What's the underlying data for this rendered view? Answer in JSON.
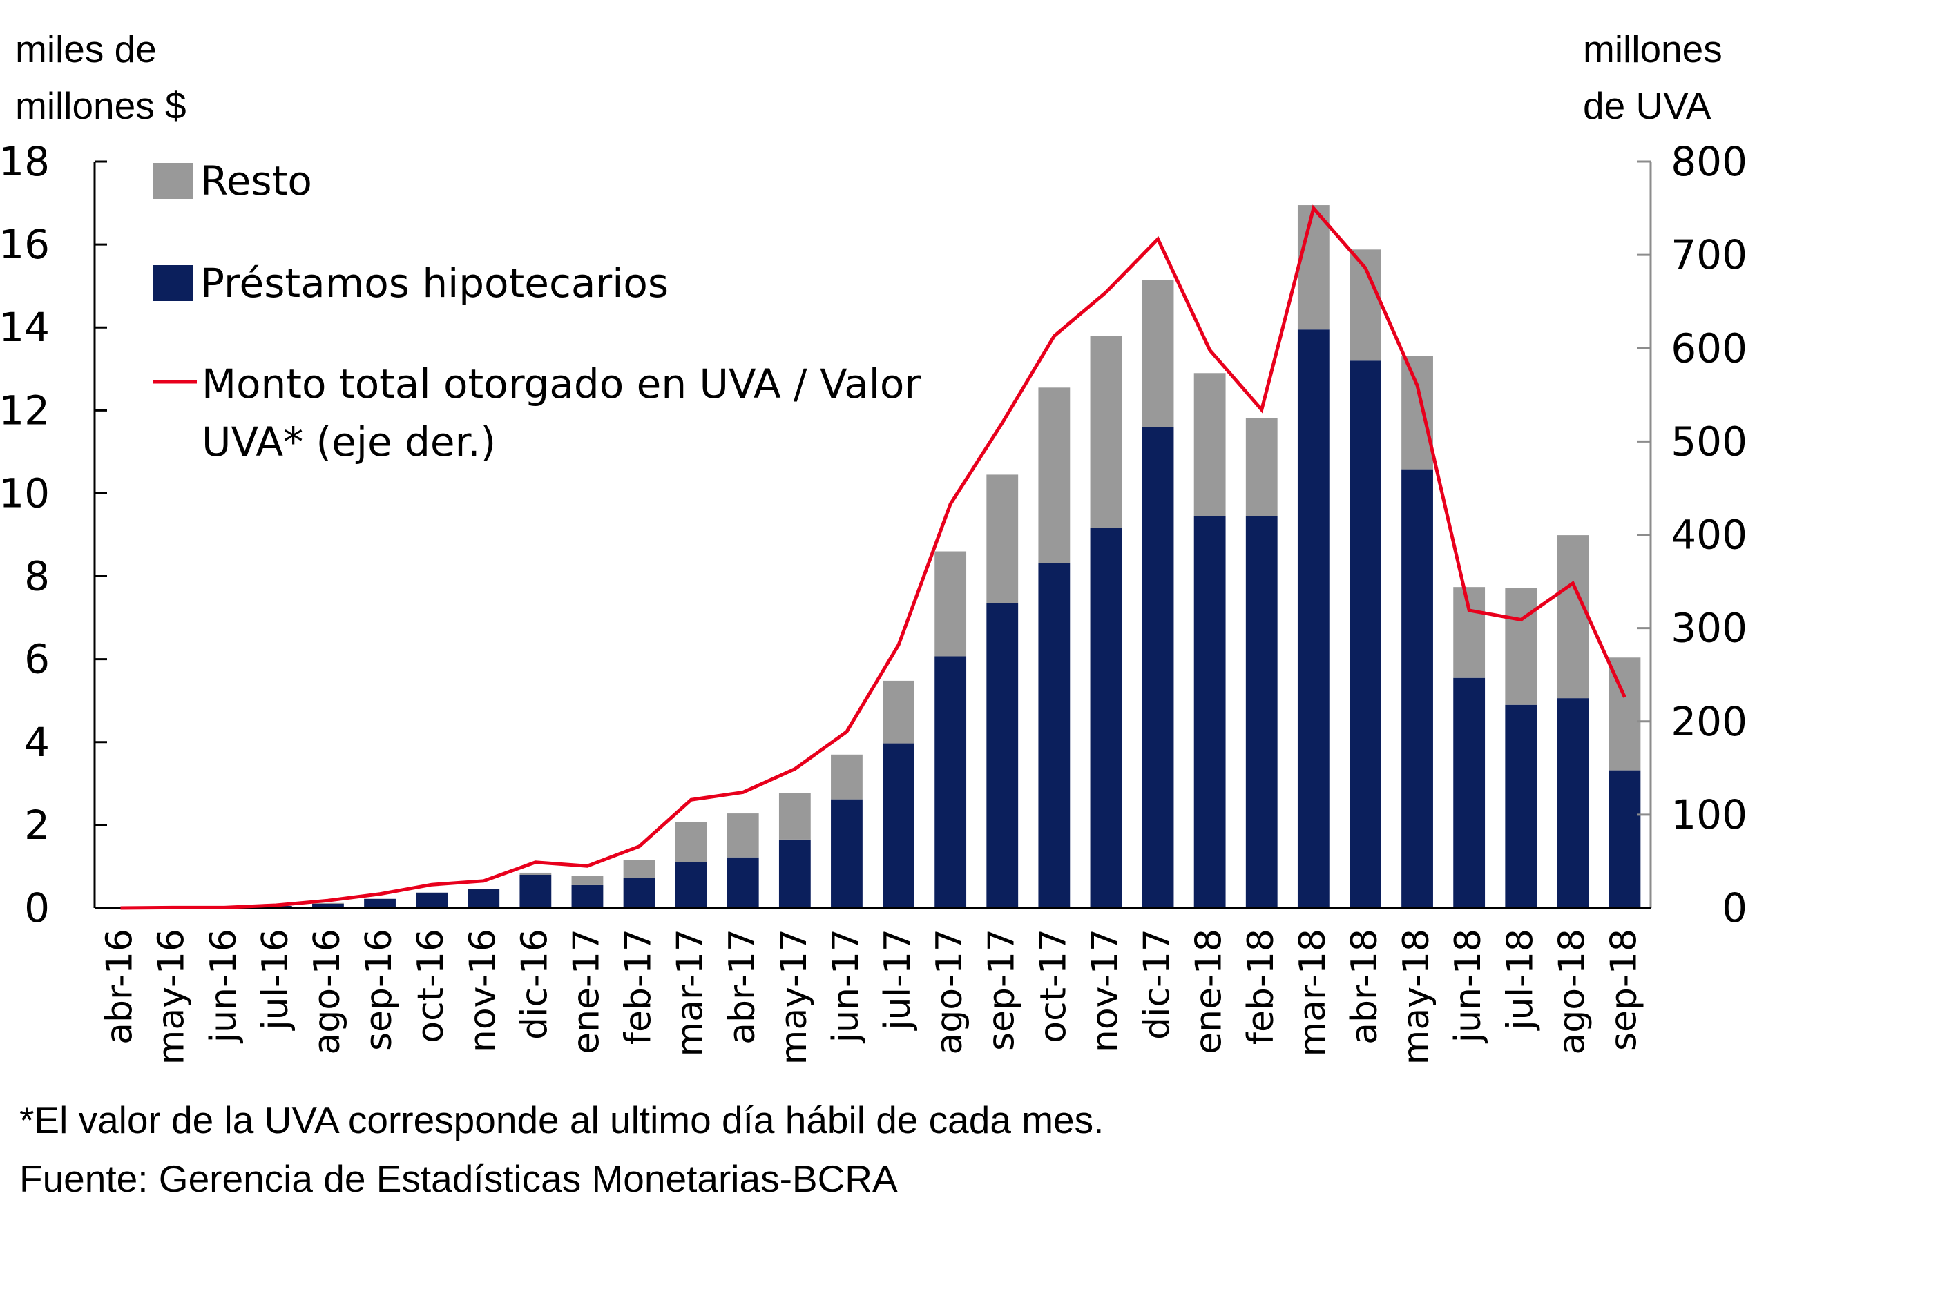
{
  "left_axis_title": [
    "miles de",
    "millones $"
  ],
  "right_axis_title": [
    "millones",
    "de UVA"
  ],
  "footnotes": [
    "*El valor de la UVA corresponde  al ultimo día hábil de cada mes.",
    "Fuente: Gerencia de Estadísticas Monetarias-BCRA"
  ],
  "colors": {
    "resto": "#999999",
    "hipotecarios": "#0b1f5c",
    "line": "#e8001c",
    "axis": "#000000",
    "right_axis": "#8c8c8c"
  },
  "chart_data": {
    "type": "bar",
    "stacked": true,
    "title": "",
    "xlabel": "",
    "ylabel": "miles de millones $",
    "y2label": "millones de UVA",
    "ylim": [
      0,
      18
    ],
    "yticks": [
      0,
      2,
      4,
      6,
      8,
      10,
      12,
      14,
      16,
      18
    ],
    "y2lim": [
      0,
      800
    ],
    "y2ticks": [
      0,
      100,
      200,
      300,
      400,
      500,
      600,
      700,
      800
    ],
    "grid": false,
    "legend_position": "top-left",
    "categories": [
      "abr-16",
      "may-16",
      "jun-16",
      "jul-16",
      "ago-16",
      "sep-16",
      "oct-16",
      "nov-16",
      "dic-16",
      "ene-17",
      "feb-17",
      "mar-17",
      "abr-17",
      "may-17",
      "jun-17",
      "jul-17",
      "ago-17",
      "sep-17",
      "oct-17",
      "nov-17",
      "dic-17",
      "ene-18",
      "feb-18",
      "mar-18",
      "abr-18",
      "may-18",
      "jun-18",
      "jul-18",
      "ago-18",
      "sep-18"
    ],
    "series": [
      {
        "name": "Préstamos hipotecarios",
        "type": "bar",
        "axis": "left",
        "values": [
          0.0,
          0.02,
          0.03,
          0.05,
          0.1,
          0.22,
          0.37,
          0.45,
          0.8,
          0.55,
          0.72,
          1.1,
          1.22,
          1.65,
          2.62,
          3.97,
          6.07,
          7.35,
          8.32,
          9.17,
          11.6,
          9.45,
          9.45,
          13.95,
          13.2,
          10.58,
          5.55,
          4.9,
          5.06,
          3.32
        ]
      },
      {
        "name": "Resto",
        "type": "bar",
        "axis": "left",
        "values": [
          0.0,
          0.0,
          0.0,
          0.0,
          0.02,
          0.0,
          0.0,
          0.0,
          0.05,
          0.23,
          0.43,
          0.98,
          1.06,
          1.12,
          1.08,
          1.51,
          2.53,
          3.1,
          4.23,
          4.63,
          3.55,
          3.45,
          2.37,
          3.0,
          2.68,
          2.74,
          2.19,
          2.81,
          3.93,
          2.72
        ]
      },
      {
        "name": "Monto total otorgado en UVA / Valor UVA* (eje der.)",
        "type": "line",
        "axis": "right",
        "values": [
          0,
          0.5,
          0.5,
          3,
          8,
          15,
          25,
          29,
          49,
          45,
          66,
          116,
          124,
          149,
          189,
          282,
          433,
          520,
          613,
          660,
          717,
          598,
          534,
          750,
          686,
          560,
          319,
          309,
          348,
          226
        ]
      }
    ],
    "legend": [
      {
        "label": "Resto",
        "kind": "box",
        "color_key": "resto"
      },
      {
        "label": "Préstamos hipotecarios",
        "kind": "box",
        "color_key": "hipotecarios"
      },
      {
        "label_lines": [
          "Monto total otorgado en UVA / Valor",
          "UVA* (eje der.)"
        ],
        "kind": "line",
        "color_key": "line"
      }
    ]
  }
}
